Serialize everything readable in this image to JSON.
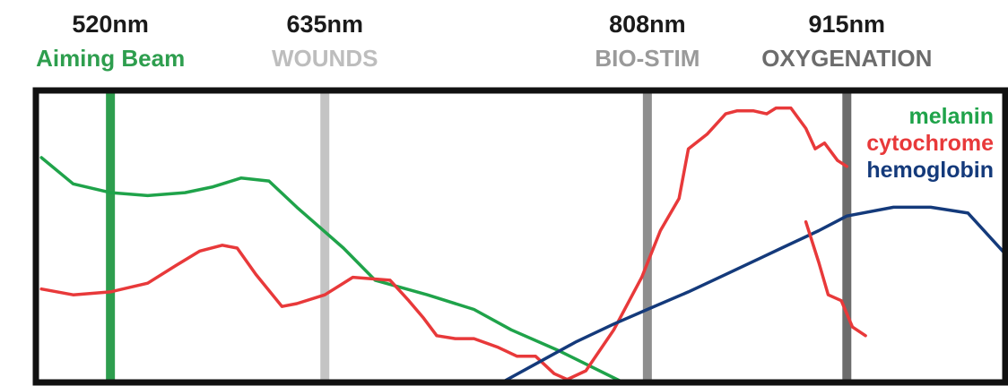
{
  "chart_data": {
    "type": "line",
    "title": "",
    "xlabel": "",
    "ylabel": "",
    "xlim": [
      480,
      1000
    ],
    "ylim": [
      0,
      100
    ],
    "grid": false,
    "legend_position": "top-right",
    "wavelength_markers": [
      {
        "wavelength": 520,
        "label": "520nm",
        "sublabel": "Aiming Beam",
        "line_color": "#2e9e4e",
        "sublabel_color": "#2e9e4e"
      },
      {
        "wavelength": 635,
        "label": "635nm",
        "sublabel": "WOUNDS",
        "line_color": "#c4c4c4",
        "sublabel_color": "#bdbdbd"
      },
      {
        "wavelength": 808,
        "label": "808nm",
        "sublabel": "BIO-STIM",
        "line_color": "#8e8e8e",
        "sublabel_color": "#9a9a9a"
      },
      {
        "wavelength": 915,
        "label": "915nm",
        "sublabel": "OXYGENATION",
        "line_color": "#6c6c6c",
        "sublabel_color": "#6c6c6c"
      }
    ],
    "series": [
      {
        "name": "melanin",
        "color": "#1fa34a",
        "x": [
          483,
          500,
          520,
          540,
          560,
          575,
          590,
          605,
          620,
          645,
          662,
          690,
          715,
          735,
          760,
          795
        ],
        "y": [
          77,
          68,
          65,
          64,
          65,
          67,
          70,
          69,
          60,
          46,
          35,
          30,
          25,
          18,
          11,
          0
        ]
      },
      {
        "name": "cytochrome",
        "color": "#e8393a",
        "x": [
          483,
          500,
          520,
          540,
          555,
          568,
          580,
          588,
          598,
          612,
          620,
          635,
          650,
          670,
          680,
          688,
          695,
          705,
          715,
          728,
          738,
          748,
          758,
          765,
          775,
          790,
          805,
          815,
          825,
          830,
          840,
          850,
          856,
          865,
          872,
          877,
          885,
          893,
          898,
          903,
          910,
          915
        ],
        "y": [
          32,
          30,
          31,
          34,
          40,
          45,
          47,
          46,
          37,
          26,
          27,
          30,
          36,
          35,
          28,
          22,
          16,
          15,
          15,
          12,
          9,
          9,
          3,
          1,
          4,
          18,
          36,
          52,
          63,
          80,
          85,
          92,
          93,
          93,
          92,
          94,
          94,
          87,
          80,
          82,
          76,
          74
        ]
      },
      {
        "name": "hemoglobin",
        "color": "#143a7b",
        "x": [
          730,
          750,
          770,
          790,
          808,
          830,
          850,
          870,
          880,
          900,
          915,
          940,
          960,
          980,
          1000
        ],
        "y": [
          0,
          7,
          14,
          20,
          25,
          31,
          37,
          43,
          46,
          52,
          57,
          60,
          60,
          58,
          44
        ]
      }
    ],
    "cytochrome_tail": {
      "x": [
        893,
        900,
        905,
        912,
        918,
        925
      ],
      "y": [
        55,
        41,
        30,
        28,
        19,
        16
      ]
    }
  }
}
